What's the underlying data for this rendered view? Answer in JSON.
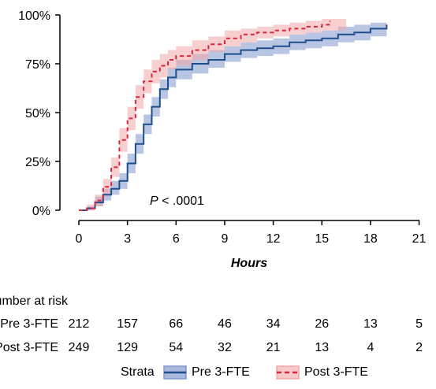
{
  "chart_data": {
    "type": "line",
    "chart_kind": "cumulative incidence (step curves with confidence bands)",
    "xlabel": "Hours",
    "ylabel": "",
    "xlim": [
      -0.8,
      21.5
    ],
    "ylim": [
      0,
      1
    ],
    "x_ticks": [
      0,
      3,
      6,
      9,
      12,
      15,
      18,
      21
    ],
    "y_ticks": [
      0,
      0.25,
      0.5,
      0.75,
      1.0
    ],
    "y_tick_labels": [
      "0%",
      "25%",
      "50%",
      "75%",
      "100%"
    ],
    "grid": false,
    "annotation": {
      "prefix": "P",
      "text": " < .0001",
      "x": 4.4,
      "y": 0.06
    },
    "series": [
      {
        "name": "Pre 3-FTE",
        "color": "#1f4e8c",
        "band_color": "#7f97cc",
        "line_style": "solid",
        "points": [
          [
            0,
            0
          ],
          [
            0.5,
            0.01
          ],
          [
            1,
            0.04
          ],
          [
            1.5,
            0.08
          ],
          [
            2,
            0.11
          ],
          [
            2.5,
            0.15
          ],
          [
            3,
            0.24
          ],
          [
            3.5,
            0.34
          ],
          [
            4,
            0.44
          ],
          [
            4.5,
            0.53
          ],
          [
            5,
            0.62
          ],
          [
            5.5,
            0.68
          ],
          [
            6,
            0.72
          ],
          [
            7,
            0.75
          ],
          [
            8,
            0.77
          ],
          [
            9,
            0.8
          ],
          [
            10,
            0.82
          ],
          [
            11,
            0.83
          ],
          [
            12,
            0.84
          ],
          [
            13,
            0.86
          ],
          [
            14,
            0.87
          ],
          [
            15,
            0.88
          ],
          [
            16,
            0.9
          ],
          [
            17,
            0.91
          ],
          [
            18,
            0.93
          ],
          [
            19,
            0.95
          ]
        ],
        "band": [
          [
            0,
            0,
            0
          ],
          [
            0.5,
            0,
            0.02
          ],
          [
            1,
            0.02,
            0.07
          ],
          [
            1.5,
            0.05,
            0.11
          ],
          [
            2,
            0.08,
            0.15
          ],
          [
            2.5,
            0.11,
            0.19
          ],
          [
            3,
            0.19,
            0.29
          ],
          [
            3.5,
            0.29,
            0.39
          ],
          [
            4,
            0.39,
            0.49
          ],
          [
            4.5,
            0.48,
            0.58
          ],
          [
            5,
            0.57,
            0.67
          ],
          [
            5.5,
            0.63,
            0.73
          ],
          [
            6,
            0.67,
            0.77
          ],
          [
            7,
            0.7,
            0.8
          ],
          [
            8,
            0.73,
            0.82
          ],
          [
            9,
            0.76,
            0.84
          ],
          [
            10,
            0.78,
            0.86
          ],
          [
            11,
            0.79,
            0.87
          ],
          [
            12,
            0.8,
            0.88
          ],
          [
            13,
            0.82,
            0.9
          ],
          [
            14,
            0.83,
            0.91
          ],
          [
            15,
            0.84,
            0.92
          ],
          [
            16,
            0.86,
            0.94
          ],
          [
            17,
            0.87,
            0.95
          ],
          [
            18,
            0.89,
            0.96
          ],
          [
            19,
            0.92,
            0.97
          ]
        ]
      },
      {
        "name": "Post 3-FTE",
        "color": "#d7263d",
        "band_color": "#f2a8a8",
        "line_style": "dashed",
        "points": [
          [
            0,
            0
          ],
          [
            0.5,
            0.01
          ],
          [
            1,
            0.05
          ],
          [
            1.5,
            0.12
          ],
          [
            2,
            0.22
          ],
          [
            2.5,
            0.36
          ],
          [
            3,
            0.47
          ],
          [
            3.5,
            0.58
          ],
          [
            4,
            0.66
          ],
          [
            4.5,
            0.71
          ],
          [
            5,
            0.74
          ],
          [
            5.5,
            0.77
          ],
          [
            6,
            0.79
          ],
          [
            7,
            0.82
          ],
          [
            8,
            0.85
          ],
          [
            9,
            0.88
          ],
          [
            10,
            0.9
          ],
          [
            11,
            0.91
          ],
          [
            12,
            0.92
          ],
          [
            13,
            0.93
          ],
          [
            14,
            0.94
          ],
          [
            15,
            0.95
          ],
          [
            15.5,
            0.97
          ]
        ],
        "band": [
          [
            0,
            0,
            0
          ],
          [
            0.5,
            0,
            0.03
          ],
          [
            1,
            0.02,
            0.08
          ],
          [
            1.5,
            0.08,
            0.16
          ],
          [
            2,
            0.17,
            0.27
          ],
          [
            2.5,
            0.3,
            0.42
          ],
          [
            3,
            0.41,
            0.53
          ],
          [
            3.5,
            0.52,
            0.64
          ],
          [
            4,
            0.6,
            0.72
          ],
          [
            4.5,
            0.65,
            0.77
          ],
          [
            5,
            0.68,
            0.8
          ],
          [
            5.5,
            0.72,
            0.82
          ],
          [
            6,
            0.74,
            0.84
          ],
          [
            7,
            0.77,
            0.87
          ],
          [
            8,
            0.81,
            0.89
          ],
          [
            9,
            0.84,
            0.92
          ],
          [
            10,
            0.86,
            0.93
          ],
          [
            11,
            0.88,
            0.94
          ],
          [
            12,
            0.89,
            0.95
          ],
          [
            13,
            0.9,
            0.96
          ],
          [
            14,
            0.91,
            0.97
          ],
          [
            15,
            0.92,
            0.98
          ],
          [
            16.5,
            0.93,
            0.99
          ]
        ]
      }
    ],
    "risk_table": {
      "title": "Number at risk",
      "rows": [
        {
          "label": "Pre 3-FTE",
          "values": [
            212,
            157,
            66,
            46,
            34,
            26,
            13,
            5
          ]
        },
        {
          "label": "Post 3-FTE",
          "values": [
            249,
            129,
            54,
            32,
            21,
            13,
            4,
            2
          ]
        }
      ]
    },
    "legend": {
      "title": "Strata",
      "position": "bottom"
    }
  }
}
